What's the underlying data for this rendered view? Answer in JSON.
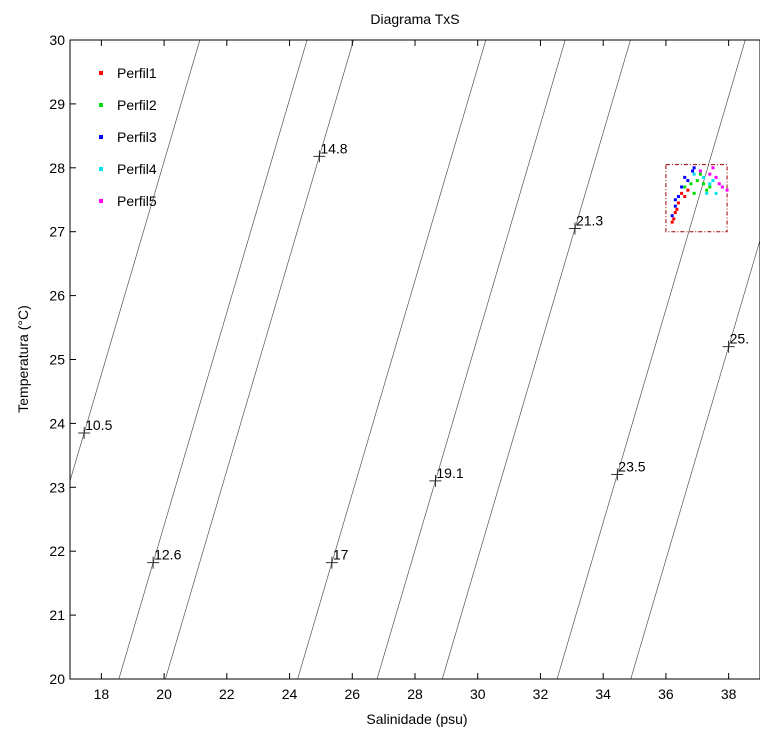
{
  "chart_data": {
    "type": "scatter",
    "title": "Diagrama TxS",
    "xlabel": "Salinidade (psu)",
    "ylabel": "Temperatura (°C)",
    "xlim": [
      17,
      39
    ],
    "ylim": [
      20,
      30
    ],
    "xticks": [
      "18",
      "20",
      "22",
      "24",
      "26",
      "28",
      "30",
      "32",
      "34",
      "36",
      "38"
    ],
    "yticks": [
      "20",
      "21",
      "22",
      "23",
      "24",
      "25",
      "26",
      "27",
      "28",
      "29",
      "30"
    ],
    "grid": false,
    "legend_position": "top-left",
    "series": [
      {
        "name": "Perfil1",
        "color": "#ff0000",
        "points": [
          [
            36.2,
            27.15
          ],
          [
            36.3,
            27.3
          ],
          [
            36.4,
            27.45
          ],
          [
            36.5,
            27.6
          ],
          [
            36.6,
            27.55
          ],
          [
            36.7,
            27.65
          ],
          [
            36.25,
            27.2
          ],
          [
            36.35,
            27.35
          ]
        ]
      },
      {
        "name": "Perfil2",
        "color": "#00dd00",
        "points": [
          [
            36.6,
            27.7
          ],
          [
            36.8,
            27.75
          ],
          [
            37.0,
            27.8
          ],
          [
            37.2,
            27.75
          ],
          [
            37.4,
            27.7
          ],
          [
            36.9,
            27.6
          ],
          [
            37.1,
            27.9
          ],
          [
            37.3,
            27.65
          ]
        ]
      },
      {
        "name": "Perfil3",
        "color": "#0000ff",
        "points": [
          [
            36.2,
            27.25
          ],
          [
            36.3,
            27.4
          ],
          [
            36.4,
            27.55
          ],
          [
            36.5,
            27.7
          ],
          [
            36.7,
            27.8
          ],
          [
            36.85,
            27.95
          ],
          [
            36.9,
            28.0
          ],
          [
            36.3,
            27.5
          ],
          [
            36.6,
            27.85
          ]
        ]
      },
      {
        "name": "Perfil4",
        "color": "#00e5ee",
        "points": [
          [
            36.9,
            27.9
          ],
          [
            37.2,
            27.85
          ],
          [
            37.4,
            27.75
          ],
          [
            37.6,
            27.6
          ],
          [
            37.8,
            27.7
          ],
          [
            37.5,
            27.8
          ],
          [
            37.3,
            27.6
          ]
        ]
      },
      {
        "name": "Perfil5",
        "color": "#ff00ff",
        "points": [
          [
            37.1,
            27.95
          ],
          [
            37.4,
            27.9
          ],
          [
            37.6,
            27.85
          ],
          [
            37.8,
            27.7
          ],
          [
            37.95,
            27.65
          ],
          [
            37.7,
            27.75
          ],
          [
            37.5,
            28.0
          ]
        ]
      }
    ],
    "isopycnals": [
      {
        "label": "10.5",
        "point": [
          17.45,
          23.85
        ]
      },
      {
        "label": "12.6",
        "point": [
          19.65,
          21.82
        ]
      },
      {
        "label": "14.8",
        "point": [
          24.95,
          28.18
        ]
      },
      {
        "label": "17",
        "point": [
          25.35,
          21.82
        ]
      },
      {
        "label": "19.1",
        "point": [
          28.65,
          23.1
        ]
      },
      {
        "label": "21.3",
        "point": [
          33.1,
          27.05
        ]
      },
      {
        "label": "23.5",
        "point": [
          34.45,
          23.2
        ]
      },
      {
        "label": "25.",
        "point": [
          38.0,
          25.2
        ]
      }
    ],
    "isopycnal_slope_psu_per_degC": 0.6,
    "zoom_box": {
      "xlim": [
        36.0,
        37.95
      ],
      "ylim": [
        27.0,
        28.05
      ],
      "color": "#990000"
    }
  }
}
